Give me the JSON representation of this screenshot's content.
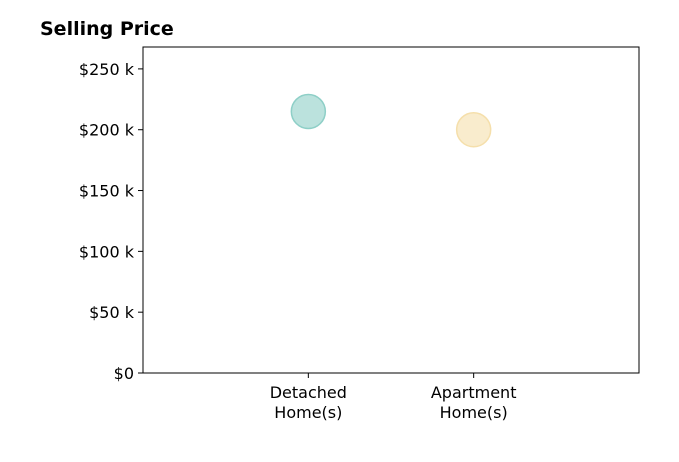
{
  "chart_data": {
    "type": "scatter",
    "title": "Selling Price",
    "xlabel": "",
    "ylabel": "",
    "categories": [
      [
        "Detached",
        "Home(s)"
      ],
      [
        "Apartment",
        "Home(s)"
      ]
    ],
    "values": [
      215000,
      200000
    ],
    "ylim": [
      0,
      268000
    ],
    "yticks": [
      0,
      50000,
      100000,
      150000,
      200000,
      250000
    ],
    "ytick_labels": [
      "$0",
      "$50 k",
      "$100 k",
      "$150 k",
      "$200 k",
      "$250 k"
    ],
    "colors": [
      "#8ecfc7",
      "#f5dfab"
    ],
    "grid": false,
    "legend": "none"
  }
}
